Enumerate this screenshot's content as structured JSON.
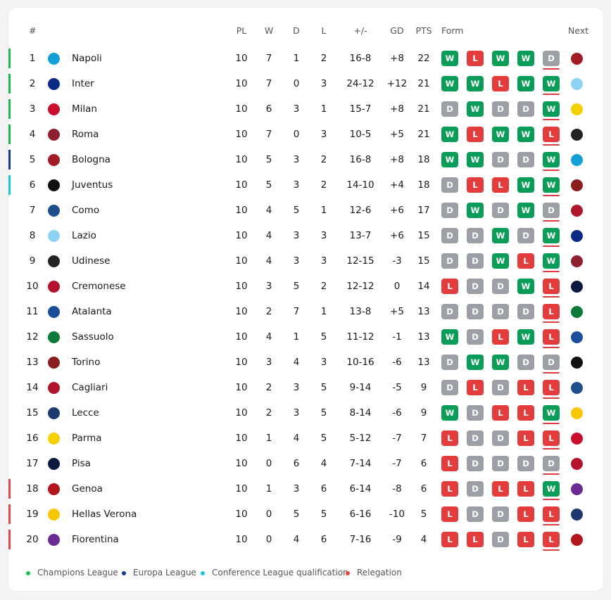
{
  "headers": {
    "rank": "#",
    "played": "PL",
    "won": "W",
    "drawn": "D",
    "lost": "L",
    "goals": "+/-",
    "goal_diff": "GD",
    "points": "PTS",
    "form": "Form",
    "next": "Next"
  },
  "zone_colors": {
    "cl": "#1cbd4f",
    "el": "#143a8f",
    "conf": "#1ec4e4",
    "rel": "#e44747"
  },
  "rows": [
    {
      "rank": "1",
      "team": "Napoli",
      "logo": "napoli-logo",
      "logo_color": "#12a0d7",
      "pl": "10",
      "w": "7",
      "d": "1",
      "l": "2",
      "goals": "16-8",
      "gd": "+8",
      "pts": "22",
      "form": [
        "W",
        "L",
        "W",
        "W",
        "D"
      ],
      "next_logo": "bologna-logo",
      "next_color": "#a21c26",
      "zone": "cl"
    },
    {
      "rank": "2",
      "team": "Inter",
      "logo": "inter-logo",
      "logo_color": "#0b2a84",
      "pl": "10",
      "w": "7",
      "d": "0",
      "l": "3",
      "goals": "24-12",
      "gd": "+12",
      "pts": "21",
      "form": [
        "W",
        "W",
        "L",
        "W",
        "W"
      ],
      "next_logo": "lazio-logo",
      "next_color": "#8fd3f2",
      "zone": "cl"
    },
    {
      "rank": "3",
      "team": "Milan",
      "logo": "milan-logo",
      "logo_color": "#c8102e",
      "pl": "10",
      "w": "6",
      "d": "3",
      "l": "1",
      "goals": "15-7",
      "gd": "+8",
      "pts": "21",
      "form": [
        "D",
        "W",
        "D",
        "D",
        "W"
      ],
      "next_logo": "parma-logo",
      "next_color": "#f4d000",
      "zone": "cl"
    },
    {
      "rank": "4",
      "team": "Roma",
      "logo": "roma-logo",
      "logo_color": "#8e1f2f",
      "pl": "10",
      "w": "7",
      "d": "0",
      "l": "3",
      "goals": "10-5",
      "gd": "+5",
      "pts": "21",
      "form": [
        "W",
        "L",
        "W",
        "W",
        "L"
      ],
      "next_logo": "udinese-logo",
      "next_color": "#222222",
      "zone": "cl"
    },
    {
      "rank": "5",
      "team": "Bologna",
      "logo": "bologna-logo",
      "logo_color": "#a21c26",
      "pl": "10",
      "w": "5",
      "d": "3",
      "l": "2",
      "goals": "16-8",
      "gd": "+8",
      "pts": "18",
      "form": [
        "W",
        "W",
        "D",
        "D",
        "W"
      ],
      "next_logo": "napoli-logo",
      "next_color": "#12a0d7",
      "zone": "el"
    },
    {
      "rank": "6",
      "team": "Juventus",
      "logo": "juventus-logo",
      "logo_color": "#111111",
      "pl": "10",
      "w": "5",
      "d": "3",
      "l": "2",
      "goals": "14-10",
      "gd": "+4",
      "pts": "18",
      "form": [
        "D",
        "L",
        "L",
        "W",
        "W"
      ],
      "next_logo": "torino-logo",
      "next_color": "#8a1e1e",
      "zone": "conf"
    },
    {
      "rank": "7",
      "team": "Como",
      "logo": "como-logo",
      "logo_color": "#1f4e8c",
      "pl": "10",
      "w": "4",
      "d": "5",
      "l": "1",
      "goals": "12-6",
      "gd": "+6",
      "pts": "17",
      "form": [
        "D",
        "W",
        "D",
        "W",
        "D"
      ],
      "next_logo": "cagliari-logo",
      "next_color": "#b0162b",
      "zone": ""
    },
    {
      "rank": "8",
      "team": "Lazio",
      "logo": "lazio-logo",
      "logo_color": "#8fd3f2",
      "pl": "10",
      "w": "4",
      "d": "3",
      "l": "3",
      "goals": "13-7",
      "gd": "+6",
      "pts": "15",
      "form": [
        "D",
        "D",
        "W",
        "D",
        "W"
      ],
      "next_logo": "inter-logo",
      "next_color": "#0b2a84",
      "zone": ""
    },
    {
      "rank": "9",
      "team": "Udinese",
      "logo": "udinese-logo",
      "logo_color": "#222222",
      "pl": "10",
      "w": "4",
      "d": "3",
      "l": "3",
      "goals": "12-15",
      "gd": "-3",
      "pts": "15",
      "form": [
        "D",
        "D",
        "W",
        "L",
        "W"
      ],
      "next_logo": "roma-logo",
      "next_color": "#8e1f2f",
      "zone": ""
    },
    {
      "rank": "10",
      "team": "Cremonese",
      "logo": "cremonese-logo",
      "logo_color": "#b5122e",
      "pl": "10",
      "w": "3",
      "d": "5",
      "l": "2",
      "goals": "12-12",
      "gd": "0",
      "pts": "14",
      "form": [
        "L",
        "D",
        "D",
        "W",
        "L"
      ],
      "next_logo": "pisa-logo",
      "next_color": "#0c1a40",
      "zone": ""
    },
    {
      "rank": "11",
      "team": "Atalanta",
      "logo": "atalanta-logo",
      "logo_color": "#1a4e9c",
      "pl": "10",
      "w": "2",
      "d": "7",
      "l": "1",
      "goals": "13-8",
      "gd": "+5",
      "pts": "13",
      "form": [
        "D",
        "D",
        "D",
        "D",
        "L"
      ],
      "next_logo": "sassuolo-logo",
      "next_color": "#0e7a3a",
      "zone": ""
    },
    {
      "rank": "12",
      "team": "Sassuolo",
      "logo": "sassuolo-logo",
      "logo_color": "#0e7a3a",
      "pl": "10",
      "w": "4",
      "d": "1",
      "l": "5",
      "goals": "11-12",
      "gd": "-1",
      "pts": "13",
      "form": [
        "W",
        "D",
        "L",
        "W",
        "L"
      ],
      "next_logo": "atalanta-logo",
      "next_color": "#1a4e9c",
      "zone": ""
    },
    {
      "rank": "13",
      "team": "Torino",
      "logo": "torino-logo",
      "logo_color": "#8a1e1e",
      "pl": "10",
      "w": "3",
      "d": "4",
      "l": "3",
      "goals": "10-16",
      "gd": "-6",
      "pts": "13",
      "form": [
        "D",
        "W",
        "W",
        "D",
        "D"
      ],
      "next_logo": "juventus-logo",
      "next_color": "#111111",
      "zone": ""
    },
    {
      "rank": "14",
      "team": "Cagliari",
      "logo": "cagliari-logo",
      "logo_color": "#b0162b",
      "pl": "10",
      "w": "2",
      "d": "3",
      "l": "5",
      "goals": "9-14",
      "gd": "-5",
      "pts": "9",
      "form": [
        "D",
        "L",
        "D",
        "L",
        "L"
      ],
      "next_logo": "como-logo",
      "next_color": "#1f4e8c",
      "zone": ""
    },
    {
      "rank": "15",
      "team": "Lecce",
      "logo": "lecce-logo",
      "logo_color": "#1d3a6e",
      "pl": "10",
      "w": "2",
      "d": "3",
      "l": "5",
      "goals": "8-14",
      "gd": "-6",
      "pts": "9",
      "form": [
        "W",
        "D",
        "L",
        "L",
        "W"
      ],
      "next_logo": "verona-logo",
      "next_color": "#f6c700",
      "zone": ""
    },
    {
      "rank": "16",
      "team": "Parma",
      "logo": "parma-logo",
      "logo_color": "#f4d000",
      "pl": "10",
      "w": "1",
      "d": "4",
      "l": "5",
      "goals": "5-12",
      "gd": "-7",
      "pts": "7",
      "form": [
        "L",
        "D",
        "D",
        "L",
        "L"
      ],
      "next_logo": "milan-logo",
      "next_color": "#c8102e",
      "zone": ""
    },
    {
      "rank": "17",
      "team": "Pisa",
      "logo": "pisa-logo",
      "logo_color": "#0c1a40",
      "pl": "10",
      "w": "0",
      "d": "6",
      "l": "4",
      "goals": "7-14",
      "gd": "-7",
      "pts": "6",
      "form": [
        "L",
        "D",
        "D",
        "D",
        "D"
      ],
      "next_logo": "cremonese-logo",
      "next_color": "#b5122e",
      "zone": ""
    },
    {
      "rank": "18",
      "team": "Genoa",
      "logo": "genoa-logo",
      "logo_color": "#b3151c",
      "pl": "10",
      "w": "1",
      "d": "3",
      "l": "6",
      "goals": "6-14",
      "gd": "-8",
      "pts": "6",
      "form": [
        "L",
        "D",
        "L",
        "L",
        "W"
      ],
      "next_logo": "fiorentina-logo",
      "next_color": "#6b2c91",
      "zone": "rel"
    },
    {
      "rank": "19",
      "team": "Hellas Verona",
      "logo": "verona-logo",
      "logo_color": "#f6c700",
      "pl": "10",
      "w": "0",
      "d": "5",
      "l": "5",
      "goals": "6-16",
      "gd": "-10",
      "pts": "5",
      "form": [
        "L",
        "D",
        "D",
        "L",
        "L"
      ],
      "next_logo": "lecce-logo",
      "next_color": "#1d3a6e",
      "zone": "rel"
    },
    {
      "rank": "20",
      "team": "Fiorentina",
      "logo": "fiorentina-logo",
      "logo_color": "#6b2c91",
      "pl": "10",
      "w": "0",
      "d": "4",
      "l": "6",
      "goals": "7-16",
      "gd": "-9",
      "pts": "4",
      "form": [
        "L",
        "L",
        "D",
        "L",
        "L"
      ],
      "next_logo": "genoa-logo",
      "next_color": "#b3151c",
      "zone": "rel"
    }
  ],
  "legend": [
    {
      "label": "Champions League",
      "color": "#1cbd4f"
    },
    {
      "label": "Europa League",
      "color": "#143a8f"
    },
    {
      "label": "Conference League qualification",
      "color": "#1ec4e4"
    },
    {
      "label": "Relegation",
      "color": "#e44747"
    }
  ]
}
